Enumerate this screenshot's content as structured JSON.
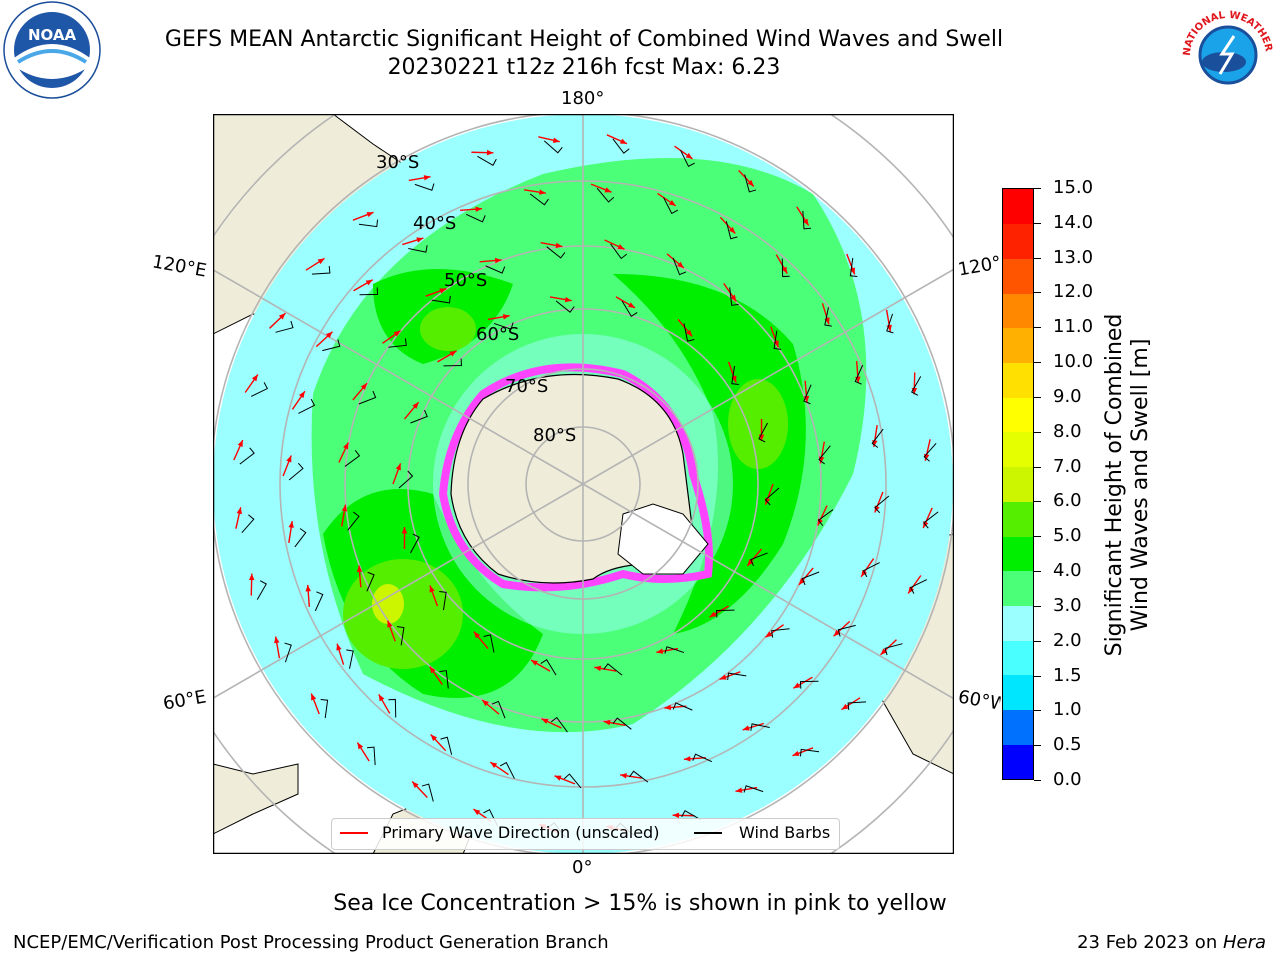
{
  "header": {
    "title_line1": "GEFS MEAN Antarctic Significant Height of Combined Wind Waves and Swell",
    "title_line2": "20230221 t12z 216h fcst   Max: 6.23"
  },
  "map": {
    "longitude_labels": {
      "top": "180°",
      "bottom": "0°",
      "upper_left": "120°E",
      "upper_right": "120°W",
      "lower_left": "60°E",
      "lower_right": "60°W"
    },
    "latitude_labels": [
      "30°S",
      "40°S",
      "50°S",
      "60°S",
      "70°S",
      "80°S"
    ],
    "colors": {
      "land": "#efedd9",
      "graticule": "#b4b4b4",
      "sea_ice": "#ff44ff"
    }
  },
  "colorbar": {
    "label_line1": "Significant Height of Combined",
    "label_line2": "Wind Waves and Swell [m]",
    "ticks": [
      "0.0",
      "0.5",
      "1.0",
      "1.5",
      "2.0",
      "3.0",
      "4.0",
      "5.0",
      "6.0",
      "7.0",
      "8.0",
      "9.0",
      "10.0",
      "11.0",
      "12.0",
      "13.0",
      "14.0",
      "15.0"
    ],
    "colors": [
      "#0000ff",
      "#0070ff",
      "#00e6ff",
      "#49ffff",
      "#9bffff",
      "#4cff78",
      "#00ee00",
      "#55ee00",
      "#ccf500",
      "#e6ff00",
      "#ffff00",
      "#ffe000",
      "#ffb000",
      "#ff8800",
      "#ff5500",
      "#ff2200",
      "#ff0000"
    ]
  },
  "legend": {
    "wave_label": "Primary Wave Direction (unscaled)",
    "wind_label": "Wind Barbs",
    "wave_color": "#ff0000",
    "wind_color": "#000000"
  },
  "footer": {
    "note": "Sea Ice Concentration > 15% is shown in pink to yellow",
    "credit": "NCEP/EMC/Verification Post Processing Product Generation Branch",
    "date": "23 Feb 2023 on ",
    "machine": "Hera"
  },
  "logos": {
    "noaa_text": "NOAA",
    "nws_text": "NATIONAL WEATHER SERVICE"
  }
}
